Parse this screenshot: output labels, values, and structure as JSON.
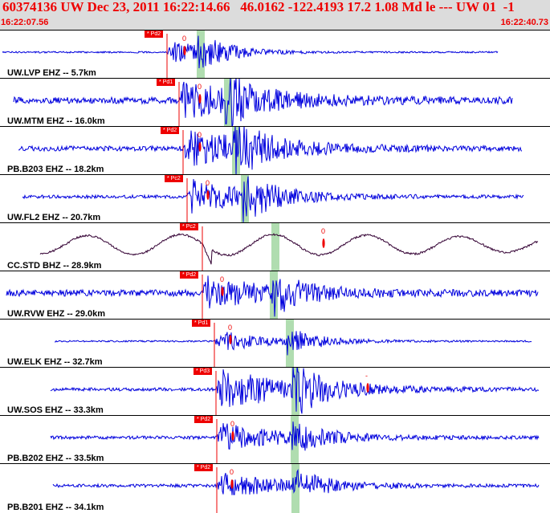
{
  "header": {
    "title": "60374136 UW Dec 23, 2011 16:22:14.66   46.0162 -122.4193 17.2 1.08 Md le --- UW 01  -1",
    "time_start": "16:22:07.56",
    "time_end": "16:22:40.73"
  },
  "colors": {
    "trace": "#0000dd",
    "trace_broadband": "#330033",
    "pick": "#ee0000",
    "window": "#9ed29e"
  },
  "traces": [
    {
      "label": "UW.LVP EHZ -- 5.7km",
      "pick_tag": "* Pd2",
      "amp_mark": "0"
    },
    {
      "label": "UW.MTM EHZ -- 16.0km",
      "pick_tag": "* Pd1",
      "amp_mark": "0"
    },
    {
      "label": "PB.B203 EHZ -- 18.2km",
      "pick_tag": "* Pd2",
      "amp_mark": "0"
    },
    {
      "label": "UW.FL2 EHZ -- 20.7km",
      "pick_tag": "* Pc2",
      "amp_mark": "0"
    },
    {
      "label": "CC.STD BHZ -- 28.9km",
      "pick_tag": "* Pc2",
      "amp_mark": "0"
    },
    {
      "label": "UW.RVW EHZ -- 29.0km",
      "pick_tag": "* Pd2",
      "amp_mark": "0"
    },
    {
      "label": "UW.ELK EHZ -- 32.7km",
      "pick_tag": "* Pd1",
      "amp_mark": "0"
    },
    {
      "label": "UW.SOS EHZ -- 33.3km",
      "pick_tag": "* Pd3",
      "amp_mark": "-"
    },
    {
      "label": "PB.B202 EHZ -- 33.5km",
      "pick_tag": "* Pd2",
      "amp_mark": "0"
    },
    {
      "label": "PB.B201 EHZ -- 34.1km",
      "pick_tag": "* Pd2",
      "amp_mark": "0"
    }
  ]
}
